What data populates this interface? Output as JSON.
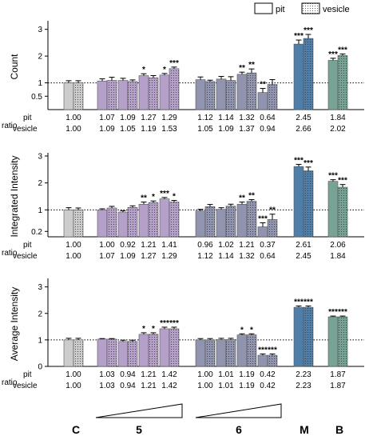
{
  "legend": {
    "pit": "pit",
    "vesicle": "vesicle"
  },
  "ratio_label": "ratio",
  "groups": [
    "C",
    "5",
    "6",
    "M",
    "B"
  ],
  "colors": {
    "C": "#cccccc",
    "5": "#b4a0c8",
    "6": "#9094ae",
    "M": "#4f7fa9",
    "B": "#76a396"
  },
  "chart_data": [
    {
      "type": "bar",
      "ylabel": "Count",
      "yticks": [
        "0.5",
        "1",
        "2",
        "3"
      ],
      "ylim": [
        0,
        3.2
      ],
      "categories": [
        "C",
        "5-1",
        "5-2",
        "5-3",
        "5-4",
        "6-1",
        "6-2",
        "6-3",
        "6-4",
        "M",
        "B"
      ],
      "series": [
        {
          "name": "pit",
          "values": [
            1.0,
            1.07,
            1.09,
            1.27,
            1.29,
            1.12,
            1.14,
            1.32,
            0.64,
            2.45,
            1.84
          ],
          "errors": [
            0.08,
            0.08,
            0.08,
            0.07,
            0.06,
            0.1,
            0.1,
            0.08,
            0.15,
            0.15,
            0.08
          ]
        },
        {
          "name": "vesicle",
          "values": [
            1.0,
            1.09,
            1.05,
            1.19,
            1.53,
            1.05,
            1.09,
            1.37,
            0.94,
            2.66,
            2.02
          ],
          "errors": [
            0.08,
            0.12,
            0.06,
            0.08,
            0.06,
            0.05,
            0.14,
            0.15,
            0.18,
            0.15,
            0.06
          ]
        }
      ],
      "significance": {
        "pit": [
          "",
          "",
          "",
          "*",
          "*",
          "",
          "",
          "**",
          "**",
          "***",
          "***"
        ],
        "vesicle": [
          "",
          "",
          "",
          "",
          "***",
          "",
          "",
          "**",
          "",
          "***",
          "***"
        ]
      },
      "ratio_rows": [
        {
          "label": "pit",
          "values": [
            "1.00",
            "1.07",
            "1.09",
            "1.27",
            "1.29",
            "1.12",
            "1.14",
            "1.32",
            "0.64",
            "2.45",
            "1.84"
          ]
        },
        {
          "label": "vesicle",
          "values": [
            "1.00",
            "1.09",
            "1.05",
            "1.19",
            "1.53",
            "1.05",
            "1.09",
            "1.37",
            "0.94",
            "2.66",
            "2.02"
          ]
        }
      ]
    },
    {
      "type": "bar",
      "ylabel": "Integrated Intensity",
      "yticks": [
        "0.2",
        "1",
        "2",
        "3"
      ],
      "ylim": [
        0,
        3.0
      ],
      "categories": [
        "C",
        "5-1",
        "5-2",
        "5-3",
        "5-4",
        "6-1",
        "6-2",
        "6-3",
        "6-4",
        "M",
        "B"
      ],
      "series": [
        {
          "name": "pit",
          "values": [
            1.0,
            1.0,
            0.92,
            1.21,
            1.41,
            0.96,
            1.02,
            1.21,
            0.37,
            2.61,
            2.06
          ],
          "errors": [
            0.08,
            0.04,
            0.05,
            0.08,
            0.05,
            0.06,
            0.06,
            0.08,
            0.15,
            0.08,
            0.06
          ]
        },
        {
          "name": "vesicle",
          "values": [
            1.0,
            1.07,
            1.09,
            1.27,
            1.29,
            1.12,
            1.14,
            1.32,
            0.64,
            2.45,
            1.84
          ],
          "errors": [
            0.07,
            0.06,
            0.06,
            0.06,
            0.06,
            0.08,
            0.07,
            0.06,
            0.2,
            0.14,
            0.1
          ]
        }
      ],
      "significance": {
        "pit": [
          "",
          "",
          "",
          "**",
          "***",
          "",
          "",
          "**",
          "***",
          "***",
          "***"
        ],
        "vesicle": [
          "",
          "",
          "",
          "*",
          "*",
          "",
          "",
          "**",
          "**",
          "***",
          "***"
        ]
      },
      "ratio_rows": [
        {
          "label": "pit",
          "values": [
            "1.00",
            "1.00",
            "0.92",
            "1.21",
            "1.41",
            "0.96",
            "1.02",
            "1.21",
            "0.37",
            "2.61",
            "2.06"
          ]
        },
        {
          "label": "vesicle",
          "values": [
            "1.00",
            "1.07",
            "1.09",
            "1.27",
            "1.29",
            "1.12",
            "1.14",
            "1.32",
            "0.64",
            "2.45",
            "1.84"
          ]
        }
      ]
    },
    {
      "type": "bar",
      "ylabel": "Average Intensity",
      "yticks": [
        "0",
        "1",
        "2",
        "3"
      ],
      "ylim": [
        0,
        3.2
      ],
      "categories": [
        "C",
        "5-1",
        "5-2",
        "5-3",
        "5-4",
        "6-1",
        "6-2",
        "6-3",
        "6-4",
        "M",
        "B"
      ],
      "series": [
        {
          "name": "pit",
          "values": [
            1.0,
            1.03,
            0.94,
            1.21,
            1.42,
            1.0,
            1.01,
            1.19,
            0.42,
            2.23,
            1.87
          ],
          "errors": [
            0.06,
            0.02,
            0.05,
            0.06,
            0.06,
            0.05,
            0.05,
            0.04,
            0.05,
            0.05,
            0.03
          ]
        },
        {
          "name": "vesicle",
          "values": [
            1.0,
            1.03,
            0.94,
            1.21,
            1.42,
            1.0,
            1.01,
            1.19,
            0.42,
            2.23,
            1.87
          ],
          "errors": [
            0.06,
            0.02,
            0.05,
            0.06,
            0.06,
            0.05,
            0.05,
            0.04,
            0.05,
            0.05,
            0.03
          ]
        }
      ],
      "significance": {
        "pit": [
          "",
          "",
          "",
          "*",
          "***",
          "",
          "",
          "*",
          "***",
          "***",
          "***"
        ],
        "vesicle": [
          "",
          "",
          "",
          "*",
          "***",
          "",
          "",
          "*",
          "***",
          "***",
          "***"
        ]
      },
      "ratio_rows": [
        {
          "label": "pit",
          "values": [
            "1.00",
            "1.03",
            "0.94",
            "1.21",
            "1.42",
            "1.00",
            "1.01",
            "1.19",
            "0.42",
            "2.23",
            "1.87"
          ]
        },
        {
          "label": "vesicle",
          "values": [
            "1.00",
            "1.03",
            "0.94",
            "1.21",
            "1.42",
            "1.00",
            "1.01",
            "1.19",
            "0.42",
            "2.23",
            "1.87"
          ]
        }
      ]
    }
  ]
}
